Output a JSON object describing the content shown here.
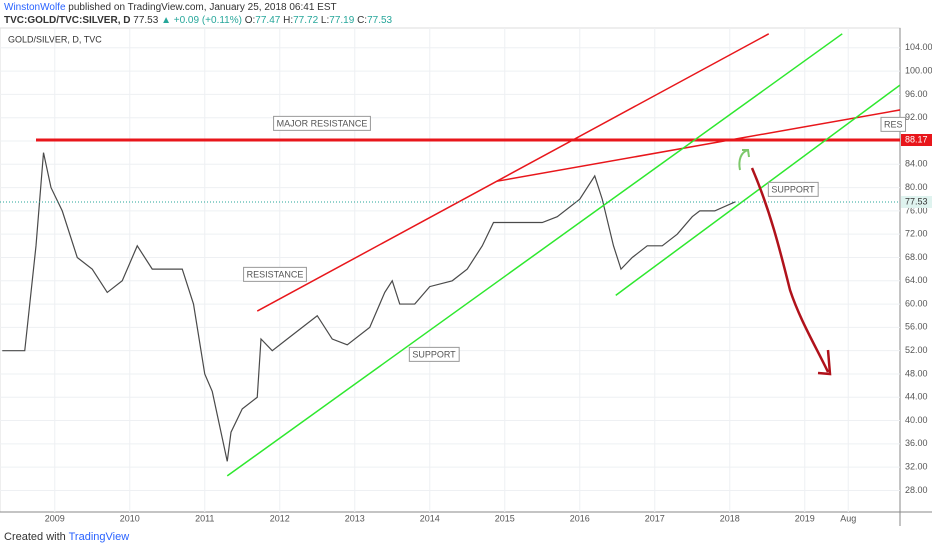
{
  "header": {
    "author": "WinstonWolfe",
    "published": "published on TradingView.com, January 25, 2018 06:41 EST",
    "symbol": "TVC:GOLD/TVC:SILVER, D",
    "last": "77.53",
    "change": "▲ +0.09 (+0.11%)",
    "o_label": "O:",
    "o": "77.47",
    "h_label": "H:",
    "h": "77.72",
    "l_label": "L:",
    "l": "77.19",
    "c_label": "C:",
    "c": "77.53"
  },
  "footer": {
    "created": "Created with",
    "brand": "TradingView"
  },
  "chart_data": {
    "type": "line",
    "subtitle": "GOLD/SILVER, D, TVC",
    "x": [
      2008.3,
      2008.6,
      2008.75,
      2008.85,
      2008.95,
      2009.1,
      2009.3,
      2009.5,
      2009.7,
      2009.9,
      2010.1,
      2010.3,
      2010.5,
      2010.7,
      2010.85,
      2011.0,
      2011.1,
      2011.3,
      2011.35,
      2011.5,
      2011.7,
      2011.75,
      2011.9,
      2012.1,
      2012.3,
      2012.5,
      2012.7,
      2012.9,
      2013.2,
      2013.4,
      2013.5,
      2013.6,
      2013.8,
      2014.0,
      2014.3,
      2014.5,
      2014.7,
      2014.85,
      2015.0,
      2015.3,
      2015.5,
      2015.7,
      2016.0,
      2016.2,
      2016.3,
      2016.45,
      2016.55,
      2016.7,
      2016.9,
      2017.1,
      2017.3,
      2017.5,
      2017.6,
      2017.8,
      2018.07
    ],
    "series": [
      {
        "name": "GOLD/SILVER",
        "color": "#4a4a4a",
        "values": [
          52,
          52,
          70,
          86,
          80,
          76,
          68,
          66,
          62,
          64,
          70,
          66,
          66,
          66,
          60,
          48,
          45,
          33,
          38,
          42,
          44,
          54,
          52,
          54,
          56,
          58,
          54,
          53,
          56,
          62,
          64,
          60,
          60,
          63,
          64,
          66,
          70,
          74,
          74,
          74,
          74,
          75,
          78,
          82,
          78,
          70,
          66,
          68,
          70,
          70,
          72,
          75,
          76,
          76,
          77.53
        ]
      }
    ],
    "xlim": [
      2008.27,
      2020.27
    ],
    "xticks": [
      2009,
      2010,
      2011,
      2012,
      2013,
      2014,
      2015,
      2016,
      2017,
      2018,
      2019,
      {
        "value": 2019.58,
        "label": "Aug"
      }
    ],
    "ylim": [
      24.3,
      107.4
    ],
    "yticks": [
      {
        "value": 28,
        "label": "28.00"
      },
      {
        "value": 32,
        "label": "32.00"
      },
      {
        "value": 36,
        "label": "36.00"
      },
      {
        "value": 40,
        "label": "40.00"
      },
      {
        "value": 44,
        "label": "44.00"
      },
      {
        "value": 48,
        "label": "48.00"
      },
      {
        "value": 52,
        "label": "52.00"
      },
      {
        "value": 56,
        "label": "56.00"
      },
      {
        "value": 60,
        "label": "60.00"
      },
      {
        "value": 64,
        "label": "64.00"
      },
      {
        "value": 68,
        "label": "68.00"
      },
      {
        "value": 72,
        "label": "72.00"
      },
      {
        "value": 76,
        "label": "76.00"
      },
      {
        "value": 80,
        "label": "80.00"
      },
      {
        "value": 84,
        "label": "84.00"
      },
      {
        "value": 88,
        "label": "88.00"
      },
      {
        "value": 92,
        "label": "92.00"
      },
      {
        "value": 96,
        "label": "96.00"
      },
      {
        "value": 100,
        "label": "100.00"
      },
      {
        "value": 104,
        "label": "104.00"
      }
    ],
    "last_price": {
      "value": 77.53,
      "label": "77.53"
    },
    "resistance_level": {
      "value": 88.17,
      "label": "88.17"
    },
    "drawings": [
      {
        "color": "#e8161b",
        "x": [
          2008.75,
          2020.27
        ],
        "y": [
          88.17,
          88.17
        ]
      },
      {
        "color": "#e8161b",
        "x": [
          2011.7,
          2018.52
        ],
        "y": [
          58.8,
          106.4
        ]
      },
      {
        "color": "#e8161b",
        "x": [
          2014.9,
          2020.3
        ],
        "y": [
          81.1,
          93.4
        ]
      },
      {
        "color": "#2ee82e",
        "x": [
          2011.3,
          2019.5
        ],
        "y": [
          30.5,
          106.4
        ]
      },
      {
        "color": "#2ee82e",
        "x": [
          2016.48,
          2020.27
        ],
        "y": [
          61.5,
          97.6
        ]
      }
    ],
    "annotations": [
      "MAJOR RESISTANCE",
      "RESISTANCE",
      "SUPPORT",
      "SUPPORT",
      "RES"
    ]
  }
}
